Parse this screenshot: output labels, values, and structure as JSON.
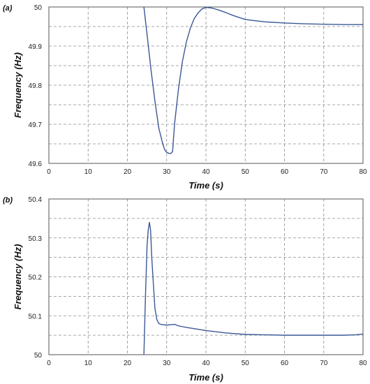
{
  "chart_data": [
    {
      "type": "line",
      "panel_label": "(a)",
      "xlabel": "Time (s)",
      "ylabel": "Frequency (Hz)",
      "xlim": [
        0,
        80
      ],
      "ylim": [
        49.6,
        50
      ],
      "x_ticks": [
        0,
        10,
        20,
        30,
        40,
        50,
        60,
        70,
        80
      ],
      "y_ticks": [
        49.6,
        49.7,
        49.8,
        49.9,
        50
      ],
      "y_tick_labels": [
        "49.6",
        "49.7",
        "49.8",
        "49.9",
        "50"
      ],
      "grid_y": [
        49.65,
        49.7,
        49.75,
        49.8,
        49.85,
        49.9,
        49.95
      ],
      "grid": true,
      "color": "#3b5896",
      "series": [
        {
          "x": [
            24.2,
            25,
            26,
            27,
            28,
            29,
            29.5,
            30,
            30.5,
            31,
            31.5,
            32,
            33,
            34,
            35,
            36,
            37,
            38,
            39,
            40,
            41,
            42,
            43,
            45,
            47,
            50,
            55,
            60,
            65,
            70,
            75,
            80
          ],
          "y": [
            50,
            49.93,
            49.84,
            49.76,
            49.69,
            49.65,
            49.635,
            49.628,
            49.626,
            49.625,
            49.63,
            49.7,
            49.79,
            49.86,
            49.91,
            49.945,
            49.97,
            49.985,
            49.995,
            49.999,
            49.998,
            49.996,
            49.993,
            49.986,
            49.978,
            49.968,
            49.962,
            49.959,
            49.957,
            49.956,
            49.955,
            49.955
          ]
        }
      ]
    },
    {
      "type": "line",
      "panel_label": "(b)",
      "xlabel": "Time (s)",
      "ylabel": "Frequency (Hz)",
      "xlim": [
        0,
        80
      ],
      "ylim": [
        50,
        50.4
      ],
      "x_ticks": [
        0,
        10,
        20,
        30,
        40,
        50,
        60,
        70,
        80
      ],
      "y_ticks": [
        50,
        50.1,
        50.2,
        50.3,
        50.4
      ],
      "y_tick_labels": [
        "50",
        "50.1",
        "50.2",
        "50.3",
        "50.4"
      ],
      "grid_y": [
        50.05,
        50.1,
        50.15,
        50.2,
        50.25,
        50.3,
        50.35
      ],
      "grid": true,
      "color": "#3b5896",
      "series": [
        {
          "x": [
            24.2,
            24.6,
            25,
            25.3,
            25.6,
            25.9,
            26.2,
            26.5,
            27,
            27.5,
            28,
            28.5,
            29,
            30,
            31,
            32,
            33,
            35,
            40,
            45,
            50,
            55,
            60,
            65,
            70,
            75,
            78,
            80
          ],
          "y": [
            50,
            50.15,
            50.28,
            50.32,
            50.34,
            50.32,
            50.25,
            50.2,
            50.12,
            50.09,
            50.08,
            50.078,
            50.077,
            50.076,
            50.077,
            50.078,
            50.074,
            50.07,
            50.062,
            50.056,
            50.052,
            50.051,
            50.05,
            50.05,
            50.05,
            50.05,
            50.051,
            50.053
          ]
        }
      ]
    }
  ]
}
